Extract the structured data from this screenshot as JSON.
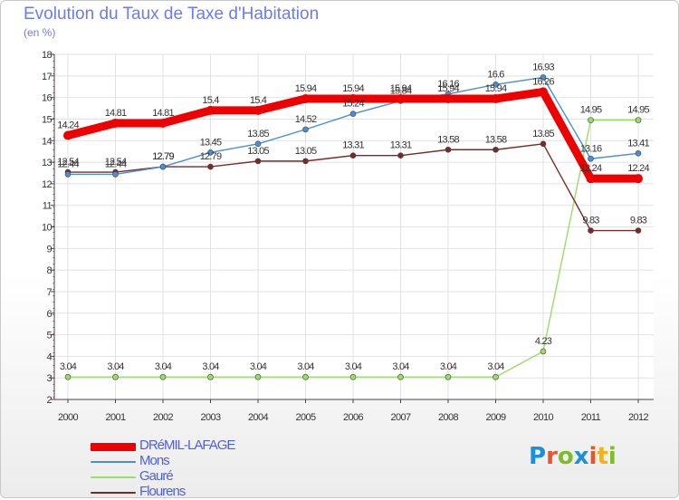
{
  "title": "Evolution du Taux de Taxe d'Habitation",
  "subtitle": "(en %)",
  "brand": {
    "text": "Proxiti",
    "colors": [
      "#1f8fd8",
      "#e8552b",
      "#7cbd28",
      "#1f8fd8",
      "#e8552b",
      "#f2b21c",
      "#7cbd28"
    ]
  },
  "chart_data": {
    "type": "line",
    "title": "Evolution du Taux de Taxe d'Habitation",
    "subtitle": "(en %)",
    "xlabel": "",
    "ylabel": "(en %)",
    "x": [
      "2000",
      "2001",
      "2002",
      "2003",
      "2004",
      "2005",
      "2006",
      "2007",
      "2008",
      "2009",
      "2010",
      "2011",
      "2012"
    ],
    "ylim": [
      2,
      18
    ],
    "yticks": [
      "2",
      "3",
      "4",
      "5",
      "6",
      "7",
      "8",
      "9",
      "10",
      "11",
      "12",
      "13",
      "14",
      "15",
      "16",
      "17",
      "18"
    ],
    "grid": true,
    "legend_position": "bottom-left",
    "series": [
      {
        "name": "DRéMIL-LAFAGE",
        "color": "#ee0000",
        "values": [
          14.24,
          14.81,
          14.81,
          15.4,
          15.4,
          15.94,
          15.94,
          15.94,
          15.94,
          15.94,
          16.26,
          12.24,
          12.24
        ],
        "labels": [
          "14.24",
          "14.81",
          "14.81",
          "15.4",
          "15.4",
          "15.94",
          "15.94",
          "15.94",
          "15.94",
          "15.94",
          "16.26",
          "12.24",
          "12.24"
        ]
      },
      {
        "name": "Mons",
        "color": "#4a8fd0",
        "values": [
          12.44,
          12.44,
          12.79,
          13.45,
          13.85,
          14.52,
          15.24,
          15.84,
          16.16,
          16.6,
          16.93,
          13.16,
          13.41
        ],
        "labels": [
          "12.44",
          "12.44",
          "12.79",
          "13.45",
          "13.85",
          "14.52",
          "15.24",
          "15.84",
          "16.16",
          "16.6",
          "16.93",
          "13.16",
          "13.41"
        ]
      },
      {
        "name": "Gauré",
        "color": "#99dd66",
        "values": [
          3.04,
          3.04,
          3.04,
          3.04,
          3.04,
          3.04,
          3.04,
          3.04,
          3.04,
          3.04,
          4.23,
          14.95,
          14.95
        ],
        "labels": [
          "3.04",
          "3.04",
          "3.04",
          "3.04",
          "3.04",
          "3.04",
          "3.04",
          "3.04",
          "3.04",
          "3.04",
          "4.23",
          "14.95",
          "14.95"
        ]
      },
      {
        "name": "Flourens",
        "color": "#7a2a2a",
        "values": [
          12.54,
          12.54,
          12.79,
          12.79,
          13.05,
          13.05,
          13.31,
          13.31,
          13.58,
          13.58,
          13.85,
          9.83,
          9.83
        ],
        "labels": [
          "12.54",
          "12.54",
          "12.79",
          "12.79",
          "13.05",
          "13.05",
          "13.31",
          "13.31",
          "13.58",
          "13.58",
          "13.85",
          "9.83",
          "9.83"
        ]
      }
    ]
  }
}
